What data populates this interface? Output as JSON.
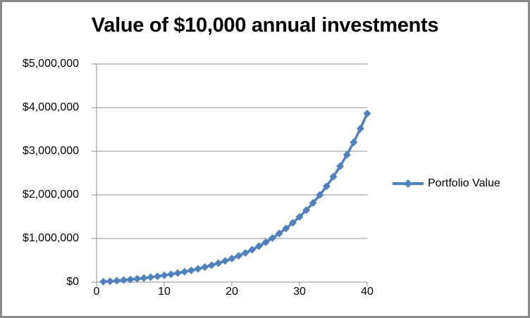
{
  "header": {
    "title": "Value of $10,000 annual investments"
  },
  "legend": {
    "label": "Portfolio Value"
  },
  "chart_data": {
    "type": "line",
    "title": "Value of $10,000 annual investments",
    "xlabel": "",
    "ylabel": "",
    "marker": "diamond",
    "grid": true,
    "legend_position": "right",
    "xlim": [
      0,
      40
    ],
    "ylim": [
      0,
      5000000
    ],
    "xticks": [
      0,
      10,
      20,
      30,
      40
    ],
    "xtick_labels": [
      "0",
      "10",
      "20",
      "30",
      "40"
    ],
    "yticks": [
      0,
      1000000,
      2000000,
      3000000,
      4000000,
      5000000
    ],
    "ytick_labels": [
      "$0",
      "$1,000,000",
      "$2,000,000",
      "$3,000,000",
      "$4,000,000",
      "$5,000,000"
    ],
    "x": [
      1,
      2,
      3,
      4,
      5,
      6,
      7,
      8,
      9,
      10,
      11,
      12,
      13,
      14,
      15,
      16,
      17,
      18,
      19,
      20,
      21,
      22,
      23,
      24,
      25,
      26,
      27,
      28,
      29,
      30,
      31,
      32,
      33,
      34,
      35,
      36,
      37,
      38,
      39,
      40
    ],
    "series": [
      {
        "name": "Portfolio Value",
        "values": [
          10000,
          20950,
          32940,
          46070,
          60446,
          76189,
          93426,
          112302,
          132971,
          155603,
          180385,
          207522,
          237236,
          269774,
          305402,
          344416,
          387135,
          433913,
          485135,
          541222,
          602638,
          669889,
          743529,
          824164,
          912459,
          1009143,
          1115012,
          1230938,
          1357877,
          1496875,
          1649078,
          1815740,
          1998236,
          2198068,
          2416885,
          2656489,
          2918855,
          3206146,
          3520730,
          3865200
        ]
      }
    ],
    "colors": {
      "series": "#4F81BD",
      "gridline": "#8C8C8C",
      "axis": "#8C8C8C",
      "border": "#898989",
      "text": "#000000",
      "background": "#FFFFFF"
    }
  }
}
